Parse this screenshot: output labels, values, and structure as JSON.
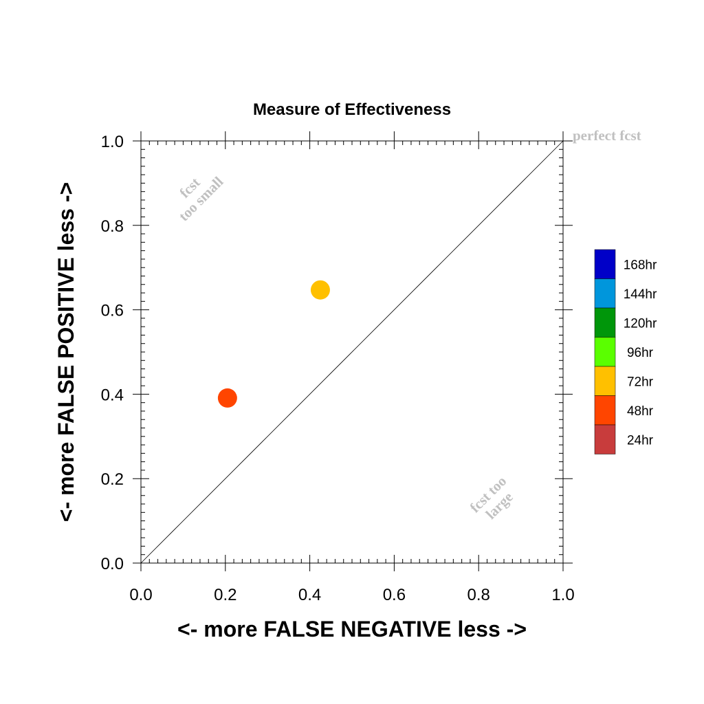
{
  "chart_data": {
    "type": "scatter",
    "title": "Measure of Effectiveness",
    "xlabel": "<- more   FALSE NEGATIVE   less ->",
    "ylabel": "<- more   FALSE POSITIVE   less ->",
    "xlim": [
      0,
      1
    ],
    "ylim": [
      0,
      1
    ],
    "x_ticks": [
      "0.0",
      "0.2",
      "0.4",
      "0.6",
      "0.8",
      "1.0"
    ],
    "y_ticks": [
      "0.0",
      "0.2",
      "0.4",
      "0.6",
      "0.8",
      "1.0"
    ],
    "grid": false,
    "reference_line": {
      "from": [
        0,
        0
      ],
      "to": [
        1,
        1
      ]
    },
    "series": [
      {
        "name": "48hr",
        "color": "#ff4500",
        "points": [
          {
            "x": 0.205,
            "y": 0.391
          }
        ]
      },
      {
        "name": "72hr",
        "color": "#ffc000",
        "points": [
          {
            "x": 0.425,
            "y": 0.647
          }
        ]
      }
    ],
    "annotations": {
      "perfect": "perfect fcst",
      "too_small": [
        "fcst",
        "too small"
      ],
      "too_large": [
        "fcst too",
        "large"
      ]
    },
    "legend": {
      "placement": "right",
      "entries": [
        {
          "label": "168hr",
          "color": "#0000c8"
        },
        {
          "label": "144hr",
          "color": "#0096dc"
        },
        {
          "label": "120hr",
          "color": "#00960a"
        },
        {
          "label": "96hr",
          "color": "#5aff00"
        },
        {
          "label": "72hr",
          "color": "#ffc000"
        },
        {
          "label": "48hr",
          "color": "#ff4500"
        },
        {
          "label": "24hr",
          "color": "#c83c3c"
        }
      ]
    }
  }
}
